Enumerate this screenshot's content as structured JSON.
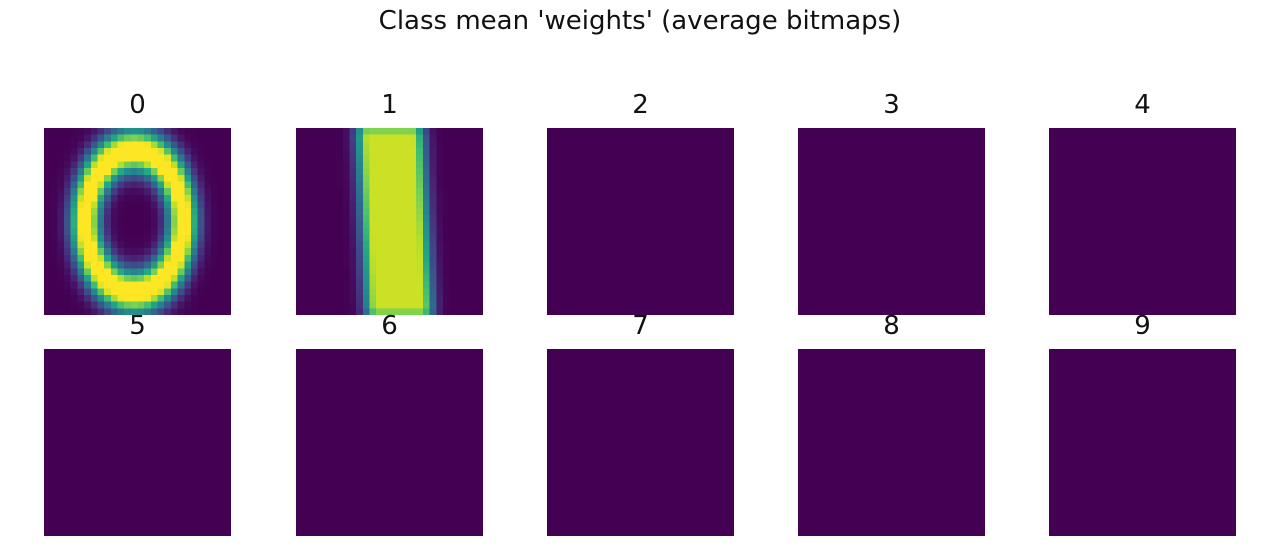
{
  "title": "Class mean 'weights' (average bitmaps)",
  "chart_data": {
    "type": "heatmap",
    "title": "Class mean 'weights' (average bitmaps)",
    "colormap": "viridis",
    "background_color": "#440154",
    "grid": false,
    "resolution": [
      28,
      28
    ],
    "panels": [
      {
        "label": "0",
        "pattern": "ring",
        "cx": 13.5,
        "cy": 14.0,
        "rx": 7.3,
        "ry": 10.6,
        "width": 1.9
      },
      {
        "label": "1",
        "pattern": "bar",
        "x0": 11.5,
        "x1": 18.0,
        "y0": 1.0,
        "y1": 27.0,
        "slant": 0.05
      },
      {
        "label": "2",
        "pattern": "empty"
      },
      {
        "label": "3",
        "pattern": "empty"
      },
      {
        "label": "4",
        "pattern": "empty"
      },
      {
        "label": "5",
        "pattern": "empty"
      },
      {
        "label": "6",
        "pattern": "empty"
      },
      {
        "label": "7",
        "pattern": "empty"
      },
      {
        "label": "8",
        "pattern": "empty"
      },
      {
        "label": "9",
        "pattern": "empty"
      }
    ]
  }
}
